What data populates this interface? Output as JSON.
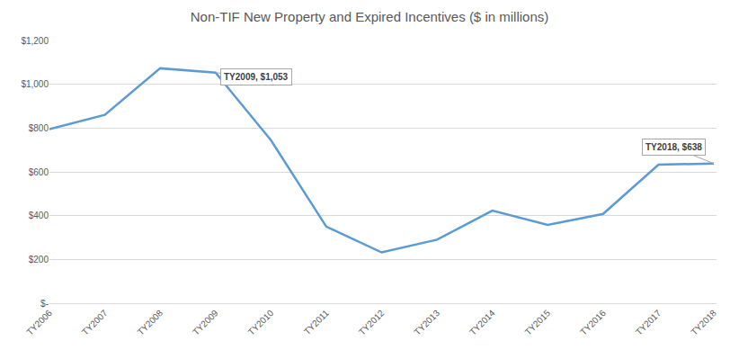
{
  "chart_data": {
    "type": "line",
    "title": "Non-TIF New Property and Expired Incentives ($ in millions)",
    "categories": [
      "TY2006",
      "TY2007",
      "TY2008",
      "TY2009",
      "TY2010",
      "TY2011",
      "TY2012",
      "TY2013",
      "TY2014",
      "TY2015",
      "TY2016",
      "TY2017",
      "TY2018"
    ],
    "values": [
      795,
      860,
      1073,
      1053,
      745,
      350,
      232,
      290,
      423,
      358,
      408,
      633,
      638
    ],
    "color": "#5b9bd5",
    "line_style": "solid",
    "ylim": [
      0,
      1200
    ],
    "yticks": [
      {
        "value": 0,
        "label": "$-"
      },
      {
        "value": 200,
        "label": "$200"
      },
      {
        "value": 400,
        "label": "$400"
      },
      {
        "value": 600,
        "label": "$600"
      },
      {
        "value": 800,
        "label": "$800"
      },
      {
        "value": 1000,
        "label": "$1,000"
      },
      {
        "value": 1200,
        "label": "$1,200"
      }
    ],
    "grid": true,
    "annotations": [
      {
        "x": "TY2009",
        "y": 1053,
        "text": "TY2009, $1,053"
      },
      {
        "x": "TY2018",
        "y": 638,
        "text": "TY2018, $638"
      }
    ]
  }
}
